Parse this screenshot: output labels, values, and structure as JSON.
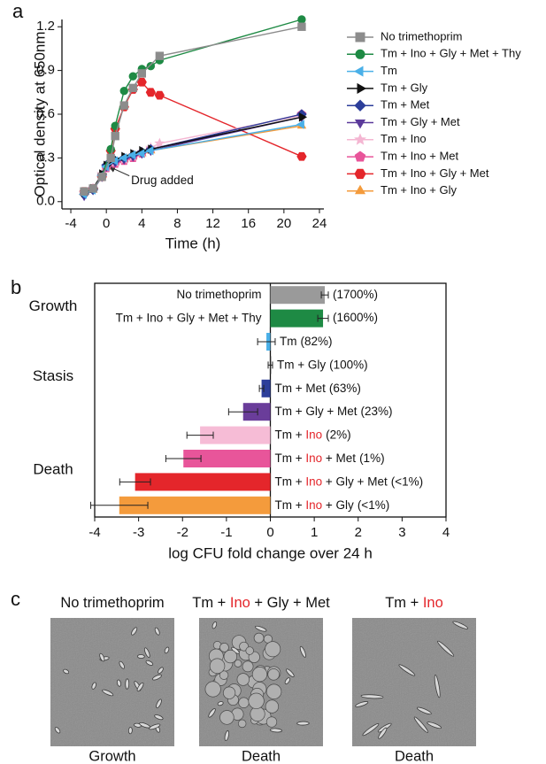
{
  "chart_data": [
    {
      "type": "line",
      "panel_label": "a",
      "xlabel": "Time (h)",
      "ylabel": "Optical density at 650nm",
      "xlim": [
        -5,
        24.5
      ],
      "xticks": [
        -4,
        0,
        4,
        8,
        12,
        16,
        20,
        24
      ],
      "ylim": [
        -0.05,
        1.25
      ],
      "yticks": [
        {
          "value": 0,
          "label": "0.0"
        },
        0.3,
        0.6,
        0.9,
        1.2
      ],
      "annotation": {
        "text": "Drug added",
        "x": 0,
        "y": 0.25
      },
      "series": [
        {
          "name": "No trimethoprim",
          "color": "#8c8c8c",
          "marker": "square",
          "x": [
            -2.5,
            -1.5,
            -0.5,
            0.5,
            1,
            2,
            3,
            4,
            6,
            22
          ],
          "values": [
            0.07,
            0.09,
            0.17,
            0.3,
            0.45,
            0.66,
            0.78,
            0.88,
            1.0,
            1.2
          ]
        },
        {
          "name": "Tm + Ino + Gly + Met + Thy",
          "color": "#1e8a44",
          "marker": "circle",
          "x": [
            -2.5,
            -1.5,
            -0.5,
            0.5,
            1,
            2,
            3,
            4,
            5,
            6,
            22
          ],
          "values": [
            0.07,
            0.09,
            0.17,
            0.36,
            0.52,
            0.76,
            0.86,
            0.91,
            0.93,
            0.97,
            1.25
          ]
        },
        {
          "name": "Tm",
          "color": "#4ab0e8",
          "marker": "triangle-left",
          "x": [
            -2.5,
            -1.5,
            -0.5,
            0,
            1,
            2,
            3,
            4,
            5,
            22
          ],
          "values": [
            0.05,
            0.08,
            0.18,
            0.24,
            0.28,
            0.3,
            0.32,
            0.33,
            0.35,
            0.53
          ]
        },
        {
          "name": "Tm + Gly",
          "color": "#111111",
          "marker": "triangle-right",
          "x": [
            -2.5,
            -1.5,
            -0.5,
            0,
            1,
            2,
            3,
            4,
            5,
            22
          ],
          "values": [
            0.06,
            0.09,
            0.19,
            0.25,
            0.29,
            0.31,
            0.33,
            0.35,
            0.36,
            0.58
          ]
        },
        {
          "name": "Tm + Met",
          "color": "#2c3e9a",
          "marker": "diamond",
          "x": [
            -2.5,
            -1.5,
            -0.5,
            0,
            1,
            2,
            3,
            4,
            5,
            22
          ],
          "values": [
            0.05,
            0.08,
            0.18,
            0.25,
            0.28,
            0.3,
            0.32,
            0.34,
            0.36,
            0.6
          ]
        },
        {
          "name": "Tm + Gly + Met",
          "color": "#5b3a9a",
          "marker": "triangle-down",
          "x": [
            -2.5,
            -1.5,
            -0.5,
            0,
            1,
            2,
            3,
            4,
            5,
            22
          ],
          "values": [
            0.04,
            0.08,
            0.17,
            0.24,
            0.27,
            0.29,
            0.31,
            0.33,
            0.35,
            0.58
          ]
        },
        {
          "name": "Tm + Ino",
          "color": "#f4b6d2",
          "marker": "star",
          "x": [
            -2.5,
            -1.5,
            -0.5,
            0,
            1,
            2,
            3,
            4,
            5,
            6,
            22
          ],
          "values": [
            0.06,
            0.09,
            0.19,
            0.24,
            0.27,
            0.29,
            0.31,
            0.34,
            0.37,
            0.4,
            0.59
          ]
        },
        {
          "name": "Tm + Ino + Met",
          "color": "#e8559a",
          "marker": "pentagon",
          "x": [
            -2.5,
            -1.5,
            -0.5,
            0,
            1,
            2,
            3,
            4,
            5,
            22
          ],
          "values": [
            0.06,
            0.09,
            0.18,
            0.23,
            0.26,
            0.28,
            0.3,
            0.33,
            0.36,
            0.6
          ]
        },
        {
          "name": "Tm + Ino + Gly + Met",
          "color": "#e4262b",
          "marker": "hexagon",
          "x": [
            -2.5,
            -1.5,
            -0.5,
            0.5,
            1,
            2,
            3,
            4,
            5,
            6,
            22
          ],
          "values": [
            0.07,
            0.09,
            0.17,
            0.35,
            0.5,
            0.65,
            0.77,
            0.82,
            0.75,
            0.73,
            0.31
          ]
        },
        {
          "name": "Tm + Ino + Gly",
          "color": "#f49b3c",
          "marker": "triangle-up",
          "x": [
            -2.5,
            -1.5,
            -0.5,
            0,
            1,
            2,
            3,
            4,
            5,
            22
          ],
          "values": [
            0.06,
            0.08,
            0.18,
            0.24,
            0.27,
            0.29,
            0.31,
            0.33,
            0.35,
            0.52
          ]
        }
      ]
    },
    {
      "type": "hbar",
      "panel_label": "b",
      "xlabel": "log CFU fold change over 24 h",
      "xlim": [
        -4,
        4
      ],
      "xticks": [
        -4,
        -3,
        -2,
        -1,
        0,
        1,
        2,
        3,
        4
      ],
      "categories": [
        [
          {
            "text": "No trimethoprim"
          }
        ],
        [
          {
            "text": "Tm + Ino + Gly + Met + Thy"
          }
        ],
        [
          {
            "text": "Tm"
          }
        ],
        [
          {
            "text": "Tm + Gly"
          }
        ],
        [
          {
            "text": "Tm + Met"
          }
        ],
        [
          {
            "text": "Tm + Gly + Met"
          }
        ],
        [
          {
            "text": "Tm + "
          },
          {
            "text": "Ino",
            "color": "#e4262b"
          }
        ],
        [
          {
            "text": "Tm + "
          },
          {
            "text": "Ino",
            "color": "#e4262b"
          },
          {
            "text": " + Met"
          }
        ],
        [
          {
            "text": "Tm + "
          },
          {
            "text": "Ino",
            "color": "#e4262b"
          },
          {
            "text": " + Gly + Met"
          }
        ],
        [
          {
            "text": "Tm + "
          },
          {
            "text": "Ino",
            "color": "#e4262b"
          },
          {
            "text": " + Gly"
          }
        ]
      ],
      "percent_labels": [
        "(1700%)",
        "(1600%)",
        "(82%)",
        "(100%)",
        "(63%)",
        "(23%)",
        "(2%)",
        "(1%)",
        "(<1%)",
        "(<1%)"
      ],
      "values": [
        1.24,
        1.2,
        -0.09,
        0.0,
        -0.2,
        -0.62,
        -1.6,
        -1.98,
        -3.08,
        -3.44
      ],
      "errors": [
        0.08,
        0.12,
        0.2,
        0.05,
        0.05,
        0.33,
        0.3,
        0.4,
        0.35,
        0.65
      ],
      "colors": [
        "#9a9a9a",
        "#1e8a44",
        "#4ab0e8",
        "#333333",
        "#2c3e9a",
        "#6a3d9a",
        "#f6bcd6",
        "#e8559a",
        "#e4262b",
        "#f49b3c"
      ],
      "groups": [
        {
          "label": "Growth",
          "rows": [
            0,
            1
          ]
        },
        {
          "label": "Stasis",
          "rows": [
            2,
            3,
            4,
            5
          ]
        },
        {
          "label": "Death",
          "rows": [
            6,
            7,
            8,
            9
          ]
        }
      ]
    }
  ],
  "images": {
    "panel_label": "c",
    "items": [
      {
        "title": [
          {
            "text": "No trimethoprim"
          }
        ],
        "caption": "Growth"
      },
      {
        "title": [
          {
            "text": "Tm + "
          },
          {
            "text": "Ino",
            "color": "#e4262b"
          },
          {
            "text": " + Gly + Met"
          }
        ],
        "caption": "Death"
      },
      {
        "title": [
          {
            "text": "Tm + "
          },
          {
            "text": "Ino",
            "color": "#e4262b"
          }
        ],
        "caption": "Death"
      }
    ]
  }
}
